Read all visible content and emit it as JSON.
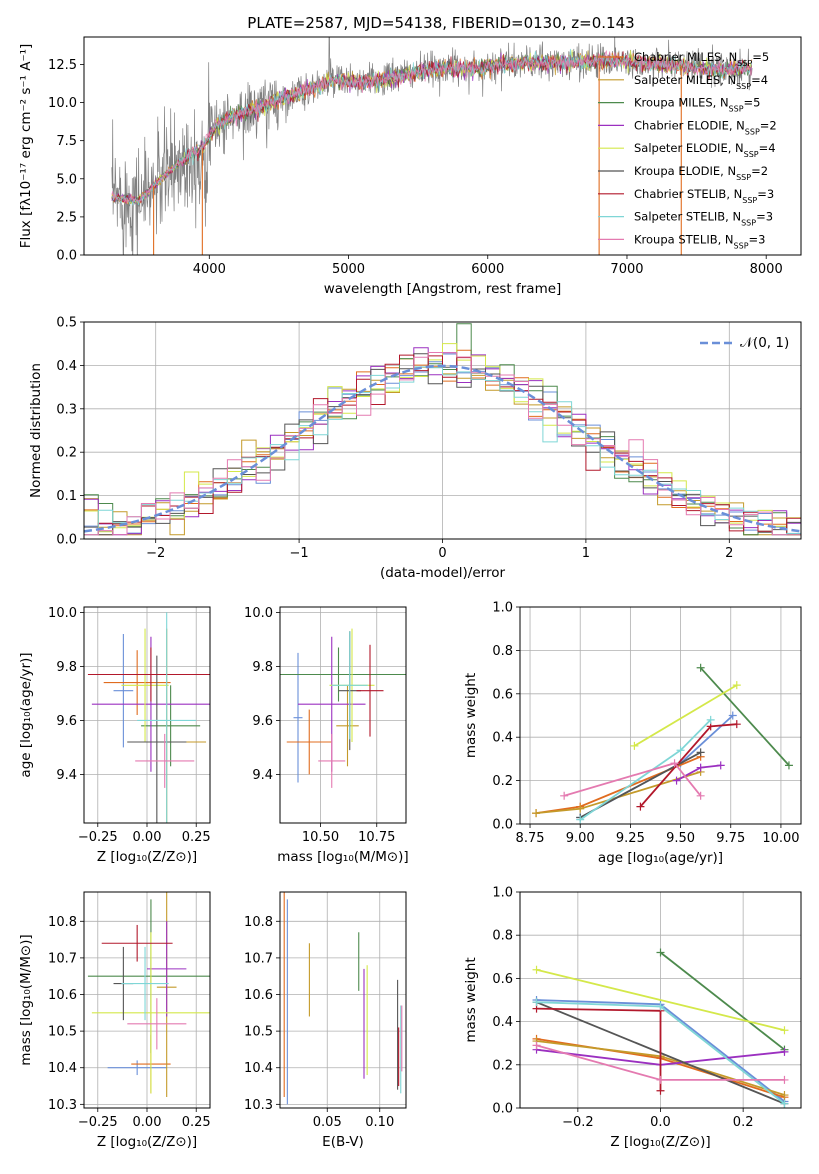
{
  "colors": [
    "#6a8fd8",
    "#e06c1f",
    "#c49a2a",
    "#4d8a4d",
    "#9b30c0",
    "#d4e84a",
    "#555555",
    "#b2182b",
    "#7fd6d6",
    "#e47ab0"
  ],
  "chart_data": [
    {
      "id": "spectrum",
      "type": "line",
      "title": "PLATE=2587, MJD=54138, FIBERID=0130, z=0.143",
      "xlabel": "wavelength [Angstrom, rest frame]",
      "ylabel": "Flux [fλ10⁻¹⁷ erg cm⁻² s⁻¹ A⁻¹]",
      "xlim": [
        3100,
        8250
      ],
      "ylim": [
        0,
        14.3
      ],
      "xticks": [
        4000,
        5000,
        6000,
        7000,
        8000
      ],
      "yticks": [
        0.0,
        2.5,
        5.0,
        7.5,
        10.0,
        12.5
      ],
      "legend_position": "top-right",
      "series": [
        {
          "name": "Chabrier MILES, N_SSP=5",
          "label_base": "Chabrier MILES, N",
          "label_n": "=5"
        },
        {
          "name": "Salpeter MILES, N_SSP=4",
          "label_base": "Salpeter MILES, N",
          "label_n": "=4"
        },
        {
          "name": "Kroupa MILES, N_SSP=5",
          "label_base": "Kroupa MILES, N",
          "label_n": "=5"
        },
        {
          "name": "Chabrier ELODIE, N_SSP=2",
          "label_base": "Chabrier ELODIE, N",
          "label_n": "=2"
        },
        {
          "name": "Salpeter ELODIE, N_SSP=4",
          "label_base": "Salpeter ELODIE, N",
          "label_n": "=4"
        },
        {
          "name": "Kroupa ELODIE, N_SSP=2",
          "label_base": "Kroupa ELODIE, N",
          "label_n": "=2"
        },
        {
          "name": "Chabrier STELIB, N_SSP=3",
          "label_base": "Chabrier STELIB, N",
          "label_n": "=3"
        },
        {
          "name": "Salpeter STELIB, N_SSP=3",
          "label_base": "Salpeter STELIB, N",
          "label_n": "=3"
        },
        {
          "name": "Kroupa STELIB, N_SSP=3",
          "label_base": "Kroupa STELIB, N",
          "label_n": "=3"
        }
      ],
      "continuum": {
        "x": [
          3300,
          3500,
          3650,
          3800,
          3950,
          4050,
          4200,
          4350,
          4500,
          4700,
          4900,
          5100,
          5300,
          5500,
          5700,
          5900,
          6100,
          6300,
          6500,
          6700,
          6900,
          7100,
          7300,
          7500,
          7700,
          7900
        ],
        "y": [
          3.8,
          3.6,
          5.0,
          6.2,
          7.0,
          8.5,
          9.2,
          9.6,
          10.2,
          10.8,
          11.5,
          11.3,
          11.6,
          12.0,
          12.3,
          12.2,
          12.5,
          12.6,
          12.6,
          12.7,
          12.8,
          12.6,
          12.5,
          12.3,
          12.1,
          12.3
        ]
      }
    },
    {
      "id": "residuals",
      "type": "line",
      "xlabel": "(data-model)/error",
      "ylabel": "Normed distribution",
      "xlim": [
        -2.5,
        2.5
      ],
      "ylim": [
        0,
        0.5
      ],
      "xticks": [
        -2,
        -1,
        0,
        1,
        2
      ],
      "yticks": [
        0.0,
        0.1,
        0.2,
        0.3,
        0.4,
        0.5
      ],
      "legend": "𝒩(0, 1)",
      "legend_position": "top-right",
      "normal": {
        "mean": 0,
        "sigma": 1
      }
    },
    {
      "id": "age-vs-Z",
      "type": "scatter",
      "xlabel": "Z [log₁₀(Z/Z⊙)]",
      "ylabel": "age  [log₁₀(age/yr)]",
      "xlim": [
        -0.32,
        0.32
      ],
      "ylim": [
        9.22,
        10.02
      ],
      "xticks": [
        -0.25,
        0.0,
        0.25
      ],
      "yticks": [
        9.4,
        9.6,
        9.8,
        10.0
      ],
      "points": [
        {
          "x": -0.12,
          "y": 9.71,
          "xerr": 0.05,
          "yerr": 0.21
        },
        {
          "x": -0.05,
          "y": 9.74,
          "xerr": 0.17,
          "yerr": 0.12
        },
        {
          "x": 0.1,
          "y": 9.52,
          "xerr": 0.2,
          "yerr": 0.42
        },
        {
          "x": 0.12,
          "y": 9.58,
          "xerr": 0.15,
          "yerr": 0.15
        },
        {
          "x": 0.02,
          "y": 9.66,
          "xerr": 0.3,
          "yerr": 0.25
        },
        {
          "x": -0.01,
          "y": 9.73,
          "xerr": 0.12,
          "yerr": 0.21
        },
        {
          "x": 0.05,
          "y": 9.52,
          "xerr": 0.15,
          "yerr": 0.32
        },
        {
          "x": 0.02,
          "y": 9.77,
          "xerr": 0.32,
          "yerr": 0.1
        },
        {
          "x": 0.1,
          "y": 9.6,
          "xerr": 0.15,
          "yerr": 0.4
        },
        {
          "x": 0.09,
          "y": 9.45,
          "xerr": 0.15,
          "yerr": 0.1
        }
      ]
    },
    {
      "id": "age-vs-mass",
      "type": "scatter",
      "xlabel": "mass [log₁₀(M/M⊙)]",
      "ylabel": "",
      "xlim": [
        10.32,
        10.88
      ],
      "ylim": [
        9.22,
        10.02
      ],
      "xticks": [
        10.5,
        10.75
      ],
      "yticks": [
        9.4,
        9.6,
        9.8,
        10.0
      ],
      "points": [
        {
          "x": 10.4,
          "y": 9.61,
          "xerr": 0.02,
          "yerr": 0.24
        },
        {
          "x": 10.45,
          "y": 9.52,
          "xerr": 0.1,
          "yerr": 0.12
        },
        {
          "x": 10.62,
          "y": 9.58,
          "xerr": 0.05,
          "yerr": 0.15
        },
        {
          "x": 10.58,
          "y": 9.77,
          "xerr": 0.3,
          "yerr": 0.1
        },
        {
          "x": 10.55,
          "y": 9.66,
          "xerr": 0.15,
          "yerr": 0.25
        },
        {
          "x": 10.64,
          "y": 9.73,
          "xerr": 0.1,
          "yerr": 0.21
        },
        {
          "x": 10.63,
          "y": 9.71,
          "xerr": 0.05,
          "yerr": 0.22
        },
        {
          "x": 10.72,
          "y": 9.71,
          "xerr": 0.06,
          "yerr": 0.17
        },
        {
          "x": 10.63,
          "y": 9.73,
          "xerr": 0.08,
          "yerr": 0.2
        },
        {
          "x": 10.55,
          "y": 9.45,
          "xerr": 0.06,
          "yerr": 0.1
        }
      ]
    },
    {
      "id": "mass-weight-vs-age",
      "type": "line",
      "xlabel": "age  [log₁₀(age/yr)]",
      "ylabel": "mass weight",
      "xlim": [
        8.7,
        10.1
      ],
      "ylim": [
        0,
        1.0
      ],
      "xticks": [
        8.75,
        9.0,
        9.25,
        9.5,
        9.75,
        10.0
      ],
      "yticks": [
        0.0,
        0.2,
        0.4,
        0.6,
        0.8,
        1.0
      ],
      "series": [
        {
          "x": [
            9.0,
            9.5,
            9.76
          ],
          "y": [
            0.03,
            0.28,
            0.5
          ]
        },
        {
          "x": [
            8.78,
            9.0,
            9.6
          ],
          "y": [
            0.05,
            0.08,
            0.31
          ]
        },
        {
          "x": [
            8.78,
            9.0,
            9.6
          ],
          "y": [
            0.05,
            0.07,
            0.24
          ]
        },
        {
          "x": [
            9.6,
            10.04
          ],
          "y": [
            0.72,
            0.27
          ]
        },
        {
          "x": [
            9.48,
            9.6,
            9.7
          ],
          "y": [
            0.2,
            0.26,
            0.27
          ]
        },
        {
          "x": [
            9.27,
            9.78
          ],
          "y": [
            0.36,
            0.64
          ]
        },
        {
          "x": [
            9.0,
            9.6
          ],
          "y": [
            0.03,
            0.33
          ]
        },
        {
          "x": [
            9.3,
            9.65,
            9.78
          ],
          "y": [
            0.08,
            0.45,
            0.46
          ]
        },
        {
          "x": [
            9.0,
            9.5,
            9.65
          ],
          "y": [
            0.02,
            0.34,
            0.48
          ]
        },
        {
          "x": [
            8.92,
            9.47,
            9.6
          ],
          "y": [
            0.13,
            0.28,
            0.13
          ]
        }
      ]
    },
    {
      "id": "mass-vs-Z",
      "type": "scatter",
      "xlabel": "Z [log₁₀(Z/Z⊙)]",
      "ylabel": "mass [log₁₀(M/M⊙)]",
      "xlim": [
        -0.32,
        0.32
      ],
      "ylim": [
        10.29,
        10.88
      ],
      "xticks": [
        -0.25,
        0.0,
        0.25
      ],
      "yticks": [
        10.3,
        10.4,
        10.5,
        10.6,
        10.7,
        10.8
      ],
      "points": [
        {
          "x": -0.05,
          "y": 10.4,
          "xerr": 0.15,
          "yerr": 0.02
        },
        {
          "x": 0.02,
          "y": 10.41,
          "xerr": 0.1,
          "yerr": 0.08
        },
        {
          "x": 0.1,
          "y": 10.62,
          "xerr": 0.05,
          "yerr": 0.3
        },
        {
          "x": 0.02,
          "y": 10.65,
          "xerr": 0.32,
          "yerr": 0.21
        },
        {
          "x": 0.1,
          "y": 10.67,
          "xerr": 0.1,
          "yerr": 0.13
        },
        {
          "x": 0.02,
          "y": 10.55,
          "xerr": 0.3,
          "yerr": 0.22
        },
        {
          "x": -0.12,
          "y": 10.63,
          "xerr": 0.05,
          "yerr": 0.1
        },
        {
          "x": -0.05,
          "y": 10.74,
          "xerr": 0.18,
          "yerr": 0.05
        },
        {
          "x": -0.01,
          "y": 10.63,
          "xerr": 0.12,
          "yerr": 0.1
        },
        {
          "x": 0.05,
          "y": 10.52,
          "xerr": 0.15,
          "yerr": 0.07
        }
      ]
    },
    {
      "id": "mass-vs-EBV",
      "type": "scatter",
      "xlabel": "E(B-V)",
      "ylabel": "",
      "xlim": [
        0.005,
        0.125
      ],
      "ylim": [
        10.29,
        10.88
      ],
      "xticks": [
        0.05,
        0.1
      ],
      "yticks": [
        10.3,
        10.4,
        10.5,
        10.6,
        10.7,
        10.8
      ],
      "points": [
        {
          "x": 0.012,
          "y": 10.58,
          "xerr": 0,
          "yerr": 0.28
        },
        {
          "x": 0.009,
          "y": 10.6,
          "xerr": 0,
          "yerr": 0.28
        },
        {
          "x": 0.033,
          "y": 10.64,
          "xerr": 0,
          "yerr": 0.1
        },
        {
          "x": 0.08,
          "y": 10.69,
          "xerr": 0,
          "yerr": 0.08
        },
        {
          "x": 0.085,
          "y": 10.52,
          "xerr": 0,
          "yerr": 0.15
        },
        {
          "x": 0.088,
          "y": 10.53,
          "xerr": 0,
          "yerr": 0.15
        },
        {
          "x": 0.117,
          "y": 10.49,
          "xerr": 0,
          "yerr": 0.15
        },
        {
          "x": 0.118,
          "y": 10.43,
          "xerr": 0,
          "yerr": 0.08
        },
        {
          "x": 0.12,
          "y": 10.45,
          "xerr": 0,
          "yerr": 0.12
        },
        {
          "x": 0.121,
          "y": 10.48,
          "xerr": 0,
          "yerr": 0.09
        }
      ]
    },
    {
      "id": "mass-weight-vs-Z",
      "type": "line",
      "xlabel": "Z [log₁₀(Z/Z⊙)]",
      "ylabel": "mass weight",
      "xlim": [
        -0.34,
        0.34
      ],
      "ylim": [
        0,
        1.0
      ],
      "xticks": [
        -0.2,
        0.0,
        0.2
      ],
      "yticks": [
        0.0,
        0.2,
        0.4,
        0.6,
        0.8,
        1.0
      ],
      "series": [
        {
          "x": [
            -0.3,
            0.0,
            0.3
          ],
          "y": [
            0.5,
            0.48,
            0.03
          ]
        },
        {
          "x": [
            -0.3,
            0.0,
            0.3
          ],
          "y": [
            0.32,
            0.23,
            0.05
          ]
        },
        {
          "x": [
            -0.3,
            0.0,
            0.3
          ],
          "y": [
            0.31,
            0.24,
            0.06
          ]
        },
        {
          "x": [
            0.0,
            0.3
          ],
          "y": [
            0.72,
            0.27
          ]
        },
        {
          "x": [
            -0.3,
            0.0,
            0.3
          ],
          "y": [
            0.27,
            0.2,
            0.26
          ]
        },
        {
          "x": [
            -0.3,
            0.3
          ],
          "y": [
            0.64,
            0.36
          ]
        },
        {
          "x": [
            -0.3,
            0.3
          ],
          "y": [
            0.49,
            0.02
          ]
        },
        {
          "x": [
            -0.3,
            0.0,
            0.0
          ],
          "y": [
            0.46,
            0.45,
            0.08
          ]
        },
        {
          "x": [
            -0.3,
            0.0,
            0.3
          ],
          "y": [
            0.49,
            0.47,
            0.02
          ]
        },
        {
          "x": [
            -0.3,
            0.0,
            0.3
          ],
          "y": [
            0.29,
            0.13,
            0.13
          ]
        }
      ]
    }
  ]
}
